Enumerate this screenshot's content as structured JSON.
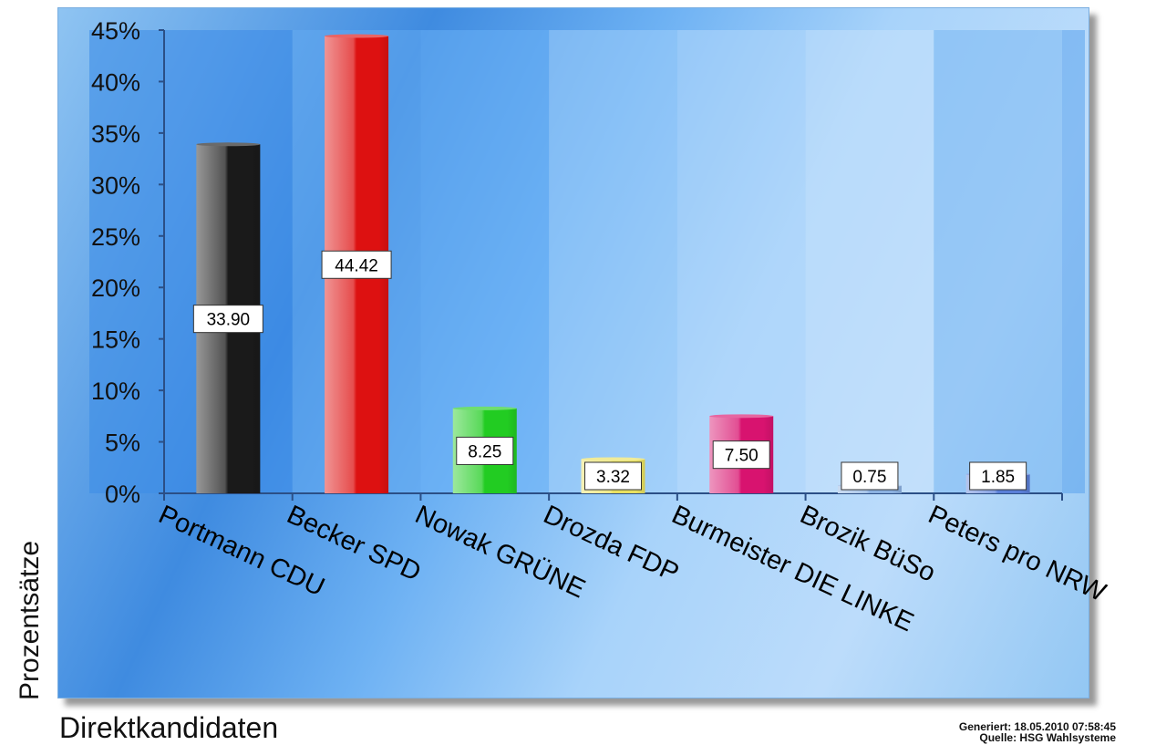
{
  "chart_data": {
    "type": "bar",
    "xlabel": "Direktkandidaten",
    "ylabel": "Prozentsätze",
    "ylim": [
      0,
      45
    ],
    "yticks": [
      "0%",
      "5%",
      "10%",
      "15%",
      "20%",
      "25%",
      "30%",
      "35%",
      "40%",
      "45%"
    ],
    "categories": [
      "Portmann CDU",
      "Becker SPD",
      "Nowak GRÜNE",
      "Drozda FDP",
      "Burmeister DIE LINKE",
      "Brozik BüSo",
      "Peters pro NRW"
    ],
    "values": [
      33.9,
      44.42,
      8.25,
      3.32,
      7.5,
      0.75,
      1.85
    ],
    "value_labels": [
      "33.90",
      "44.42",
      "8.25",
      "3.32",
      "7.50",
      "0.75",
      "1.85"
    ],
    "bar_colors": [
      "#1a1a1a",
      "#dd1111",
      "#22cc22",
      "#e8e060",
      "#d8136f",
      "#8ab0e0",
      "#5a7fd8"
    ],
    "grid": false,
    "legend": "none"
  },
  "footer": {
    "generated": "Generiert: 18.05.2010 07:58:45",
    "source": "Quelle: HSG Wahlsysteme"
  }
}
